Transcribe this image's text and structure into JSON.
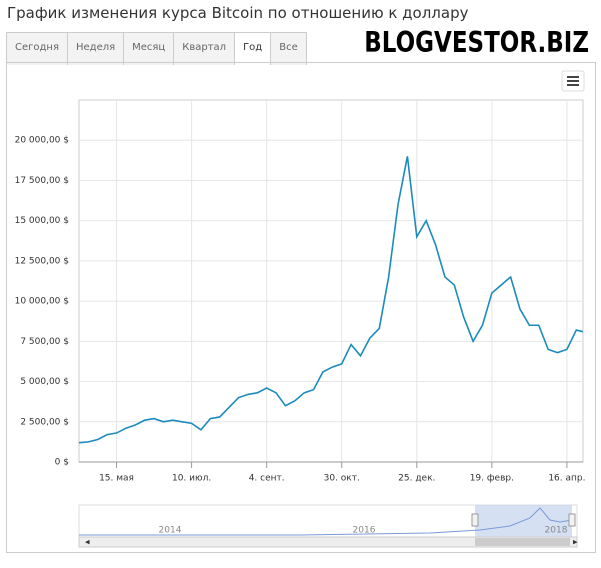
{
  "title": "График изменения курса Bitcoin по отношению к доллару",
  "tabs": [
    "Сегодня",
    "Неделя",
    "Месяц",
    "Квартал",
    "Год",
    "Все"
  ],
  "active_tab": 4,
  "logo": "BLOGVESTOR.BIZ",
  "navigator_labels": [
    "2014",
    "2016",
    "2018"
  ],
  "chart_data": {
    "type": "line",
    "color": "#1b8bbd",
    "x": [
      0,
      7,
      14,
      21,
      28,
      35,
      42,
      49,
      56,
      63,
      70,
      77,
      84,
      91,
      98,
      105,
      112,
      119,
      126,
      133,
      140,
      147,
      154,
      161,
      168,
      175,
      182,
      189,
      196,
      203,
      210,
      217,
      224,
      231,
      238,
      245,
      252,
      259,
      266,
      273,
      280,
      287,
      294,
      301,
      308,
      315,
      322,
      329,
      336,
      343,
      350,
      357,
      364,
      371,
      376
    ],
    "values": [
      1200,
      1250,
      1400,
      1700,
      1800,
      2100,
      2300,
      2600,
      2700,
      2500,
      2600,
      2500,
      2400,
      2000,
      2700,
      2800,
      3400,
      4000,
      4200,
      4300,
      4600,
      4300,
      3500,
      3800,
      4300,
      4500,
      5600,
      5900,
      6100,
      7300,
      6600,
      7700,
      8300,
      11500,
      16000,
      19000,
      14000,
      15000,
      13500,
      11500,
      11000,
      9000,
      7500,
      8500,
      10500,
      11000,
      11500,
      9500,
      8500,
      8500,
      7000,
      6800,
      7000,
      8200,
      8100
    ],
    "xlim": [
      0,
      376
    ],
    "xticks": [
      {
        "value": 28,
        "label": "15. мая"
      },
      {
        "value": 84,
        "label": "10. июл."
      },
      {
        "value": 140,
        "label": "4. сент."
      },
      {
        "value": 196,
        "label": "30. окт."
      },
      {
        "value": 252,
        "label": "25. дек."
      },
      {
        "value": 308,
        "label": "19. февр."
      },
      {
        "value": 364,
        "label": "16. апр."
      }
    ],
    "ylim": [
      0,
      22500
    ],
    "yticks": [
      {
        "value": 0,
        "label": "0 $"
      },
      {
        "value": 2500,
        "label": "2 500,00 $"
      },
      {
        "value": 5000,
        "label": "5 000,00 $"
      },
      {
        "value": 7500,
        "label": "7 500,00 $"
      },
      {
        "value": 10000,
        "label": "10 000,00 $"
      },
      {
        "value": 12500,
        "label": "12 500,00 $"
      },
      {
        "value": 15000,
        "label": "15 000,00 $"
      },
      {
        "value": 17500,
        "label": "17 500,00 $"
      },
      {
        "value": 20000,
        "label": "20 000,00 $"
      }
    ],
    "grid": true
  }
}
